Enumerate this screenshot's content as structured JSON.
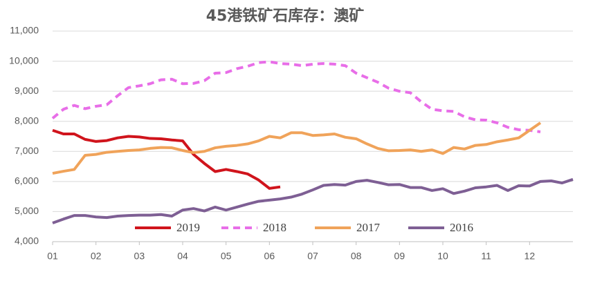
{
  "chart_data": {
    "type": "line",
    "title": "45港铁矿石库存：澳矿",
    "x": [
      1,
      1.25,
      1.5,
      1.75,
      2,
      2.25,
      2.5,
      2.75,
      3,
      3.25,
      3.5,
      3.75,
      4,
      4.25,
      4.5,
      4.75,
      5,
      5.25,
      5.5,
      5.75,
      6,
      6.25,
      6.5,
      6.75,
      7,
      7.25,
      7.5,
      7.75,
      8,
      8.25,
      8.5,
      8.75,
      9,
      9.25,
      9.5,
      9.75,
      10,
      10.25,
      10.5,
      10.75,
      11,
      11.25,
      11.5,
      11.75,
      12,
      12.25,
      12.5,
      12.75,
      13
    ],
    "series": [
      {
        "name": "2019",
        "color": "#d0141c",
        "dashed": false,
        "values": [
          7700,
          7580,
          7580,
          7400,
          7330,
          7360,
          7450,
          7500,
          7480,
          7430,
          7420,
          7380,
          7350,
          6900,
          6600,
          6330,
          6400,
          6330,
          6250,
          6050,
          5770,
          5820,
          null,
          null,
          null,
          null,
          null,
          null,
          null,
          null,
          null,
          null,
          null,
          null,
          null,
          null,
          null,
          null,
          null,
          null,
          null,
          null,
          null,
          null,
          null,
          null,
          null,
          null,
          null
        ]
      },
      {
        "name": "2018",
        "color": "#e86ee8",
        "dashed": true,
        "values": [
          8100,
          8400,
          8530,
          8420,
          8500,
          8550,
          8850,
          9120,
          9180,
          9250,
          9380,
          9400,
          9250,
          9260,
          9350,
          9600,
          9620,
          9750,
          9830,
          9950,
          9980,
          9920,
          9900,
          9850,
          9900,
          9920,
          9900,
          9850,
          9600,
          9450,
          9300,
          9100,
          9000,
          8950,
          8650,
          8400,
          8350,
          8330,
          8150,
          8050,
          8040,
          7950,
          7800,
          7720,
          7700,
          7650,
          null,
          null,
          null
        ]
      },
      {
        "name": "2017",
        "color": "#f0a35a",
        "dashed": false,
        "values": [
          6270,
          6340,
          6400,
          6870,
          6900,
          6970,
          7000,
          7030,
          7050,
          7100,
          7130,
          7120,
          7030,
          6960,
          7000,
          7120,
          7170,
          7200,
          7250,
          7350,
          7500,
          7450,
          7620,
          7620,
          7530,
          7550,
          7580,
          7470,
          7420,
          7250,
          7100,
          7020,
          7030,
          7050,
          7000,
          7050,
          6930,
          7130,
          7080,
          7200,
          7230,
          7320,
          7380,
          7450,
          7700,
          7950,
          null,
          null,
          null
        ]
      },
      {
        "name": "2016",
        "color": "#7e5f94",
        "dashed": false,
        "values": [
          4620,
          4750,
          4870,
          4870,
          4820,
          4800,
          4850,
          4870,
          4880,
          4880,
          4900,
          4850,
          5050,
          5100,
          5020,
          5150,
          5050,
          5150,
          5250,
          5340,
          5380,
          5420,
          5480,
          5580,
          5720,
          5870,
          5900,
          5880,
          6000,
          6040,
          5970,
          5890,
          5900,
          5800,
          5800,
          5700,
          5760,
          5600,
          5680,
          5790,
          5820,
          5870,
          5700,
          5860,
          5850,
          6000,
          6020,
          5950,
          6070
        ]
      }
    ],
    "xlim": [
      1,
      13
    ],
    "xticks": [
      {
        "value": 1,
        "label": "01"
      },
      {
        "value": 2,
        "label": "02"
      },
      {
        "value": 3,
        "label": "03"
      },
      {
        "value": 4,
        "label": "04"
      },
      {
        "value": 5,
        "label": "05"
      },
      {
        "value": 6,
        "label": "06"
      },
      {
        "value": 7,
        "label": "07"
      },
      {
        "value": 8,
        "label": "08"
      },
      {
        "value": 9,
        "label": "09"
      },
      {
        "value": 10,
        "label": "10"
      },
      {
        "value": 11,
        "label": "11"
      },
      {
        "value": 12,
        "label": "12"
      }
    ],
    "ylim": [
      4000,
      11000
    ],
    "yticks": [
      {
        "value": 4000,
        "label": "4,000"
      },
      {
        "value": 5000,
        "label": "5,000"
      },
      {
        "value": 6000,
        "label": "6,000"
      },
      {
        "value": 7000,
        "label": "7,000"
      },
      {
        "value": 8000,
        "label": "8,000"
      },
      {
        "value": 9000,
        "label": "9,000"
      },
      {
        "value": 10000,
        "label": "10,000"
      },
      {
        "value": 11000,
        "label": "11,000"
      }
    ],
    "grid": true
  }
}
